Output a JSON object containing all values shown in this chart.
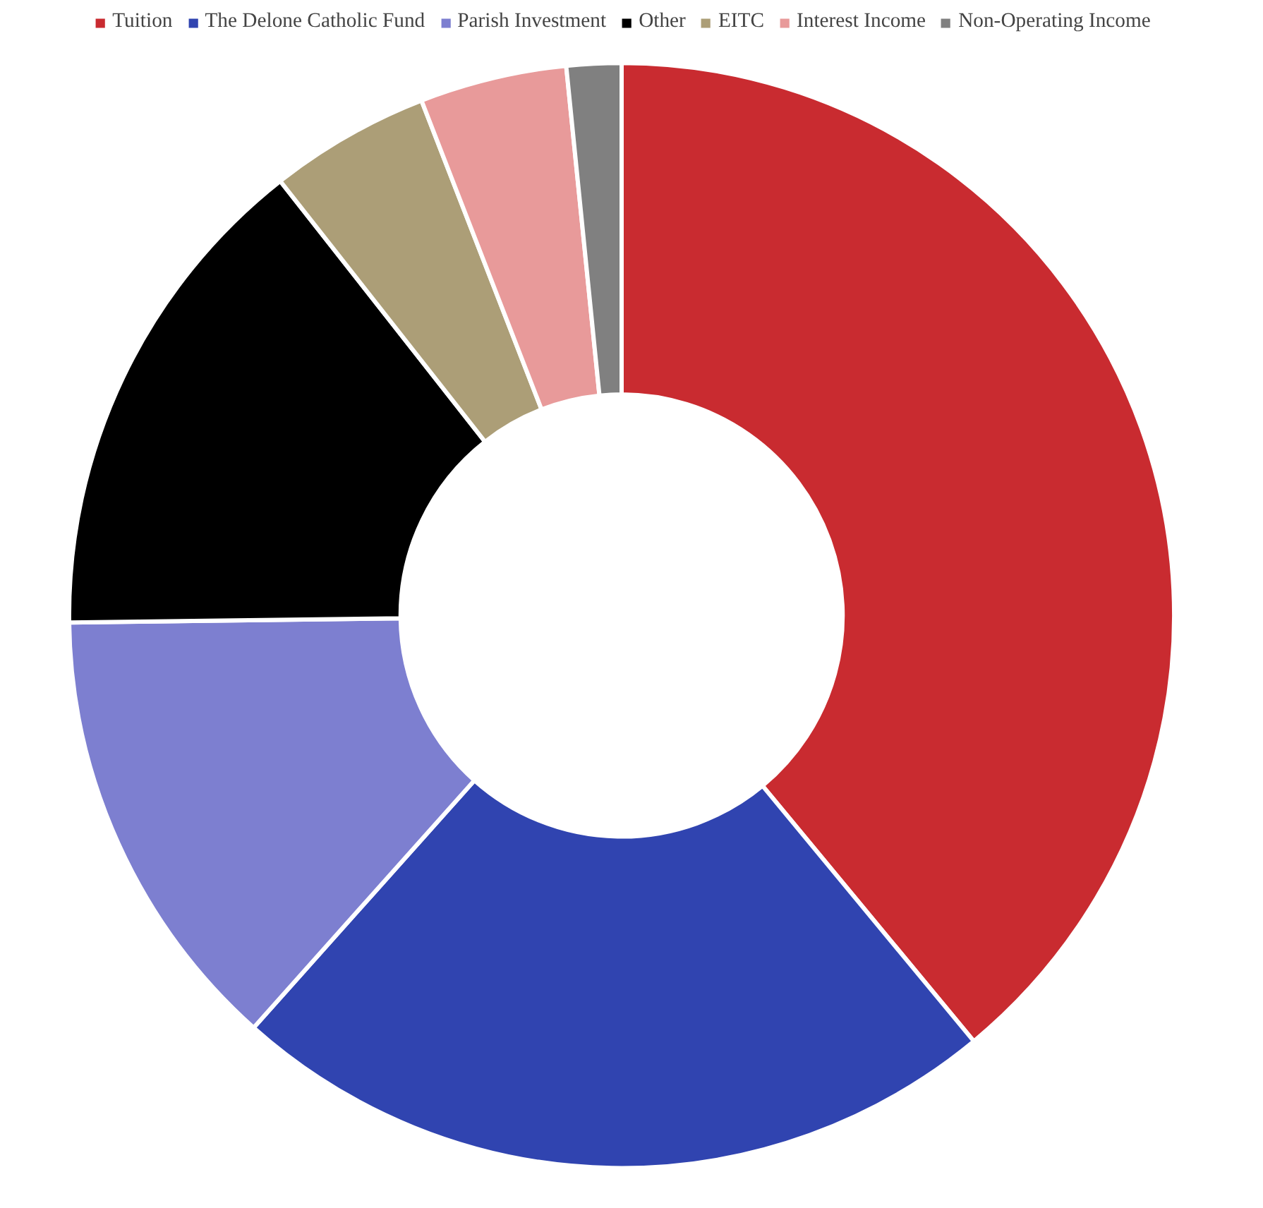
{
  "chart_data": {
    "type": "donut",
    "categories": [
      "Tuition",
      "The Delone Catholic Fund",
      "Parish Investment",
      "Other",
      "EITC",
      "Interest Income",
      "Non-Operating Income"
    ],
    "values": [
      39,
      22.6,
      13.2,
      14.6,
      4.7,
      4.3,
      1.6
    ],
    "colors": [
      "#c92b30",
      "#3044b0",
      "#7d7fd0",
      "#000000",
      "#ac9e77",
      "#e89a9a",
      "#808080"
    ],
    "legend": "top"
  }
}
